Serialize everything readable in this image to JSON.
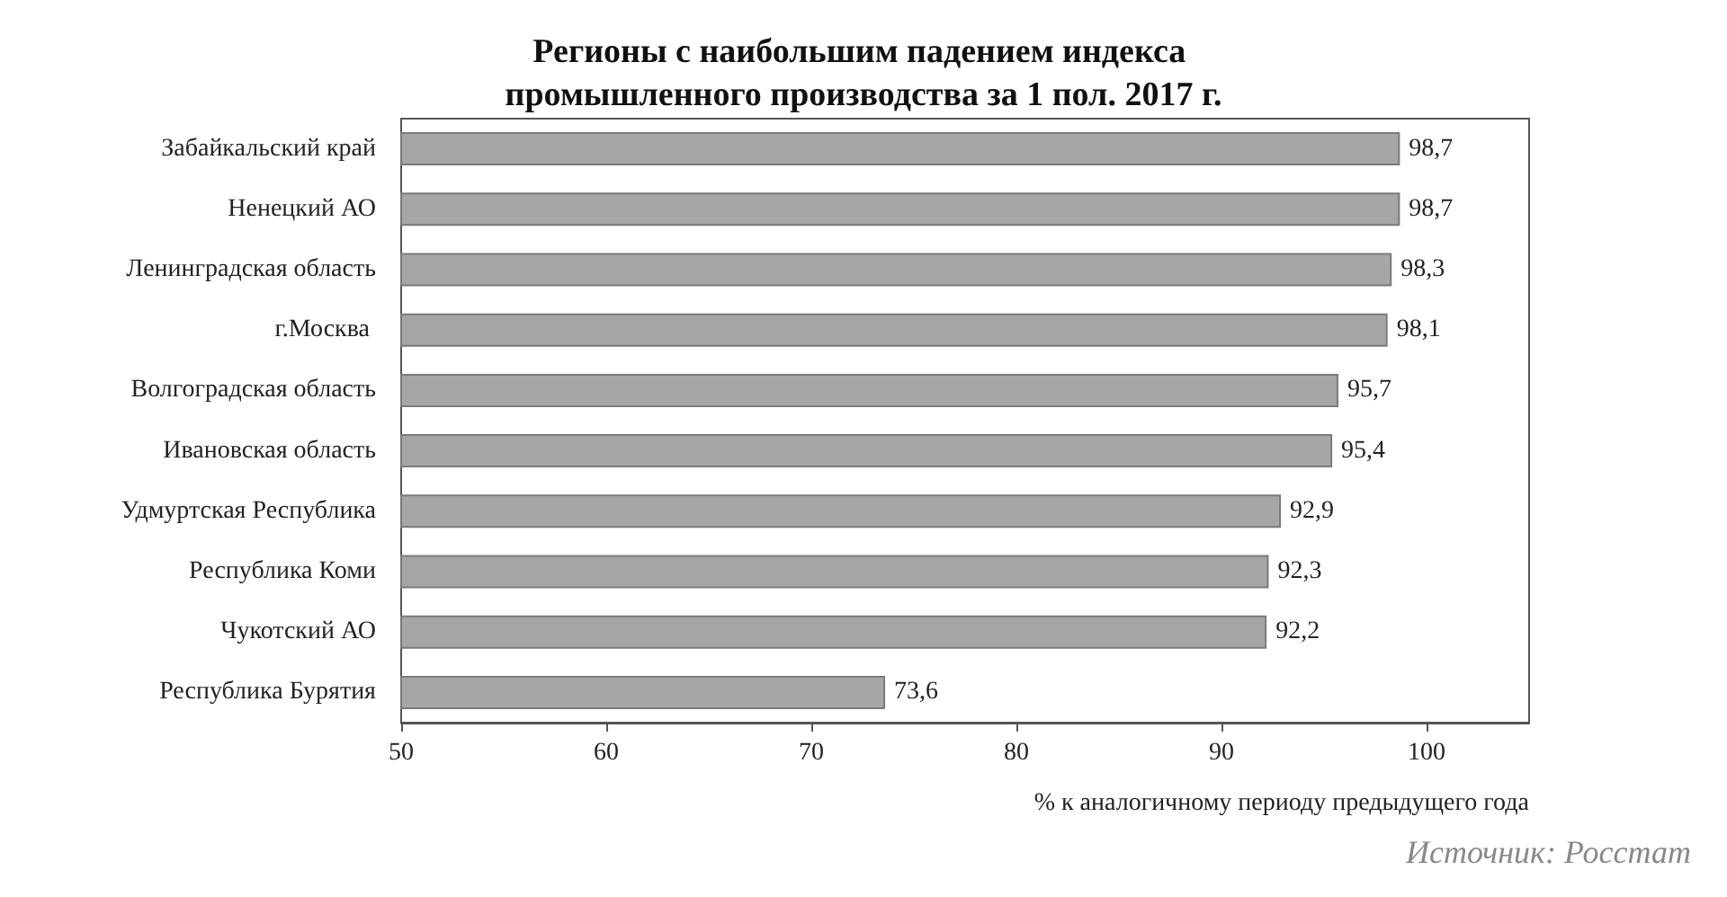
{
  "chart_data": {
    "type": "bar",
    "orientation": "horizontal",
    "title": "Регионы с наибольшим падением индекса промышленного производства за 1 пол. 2017 г.",
    "xlabel": "% к аналогичному периоду предыдущего года",
    "annotations": [
      "Источник: Росстат"
    ],
    "categories": [
      "Забайкальский край",
      "Ненецкий АО",
      "Ленинградская область",
      "г.Москва ",
      "Волгоградская область",
      "Ивановская область",
      "Удмуртская Республика",
      "Республика Коми",
      "Чукотский АО",
      "Республика Бурятия"
    ],
    "values": [
      98.7,
      98.7,
      98.3,
      98.1,
      95.7,
      95.4,
      92.9,
      92.3,
      92.2,
      73.6
    ],
    "value_labels": [
      "98,7",
      "98,7",
      "98,3",
      "98,1",
      "95,7",
      "95,4",
      "92,9",
      "92,3",
      "92,2",
      "73,6"
    ],
    "color": "#a6a6a6",
    "xlim": [
      50,
      105
    ],
    "xticks": [
      50,
      60,
      70,
      80,
      90,
      100
    ],
    "grid": false
  }
}
